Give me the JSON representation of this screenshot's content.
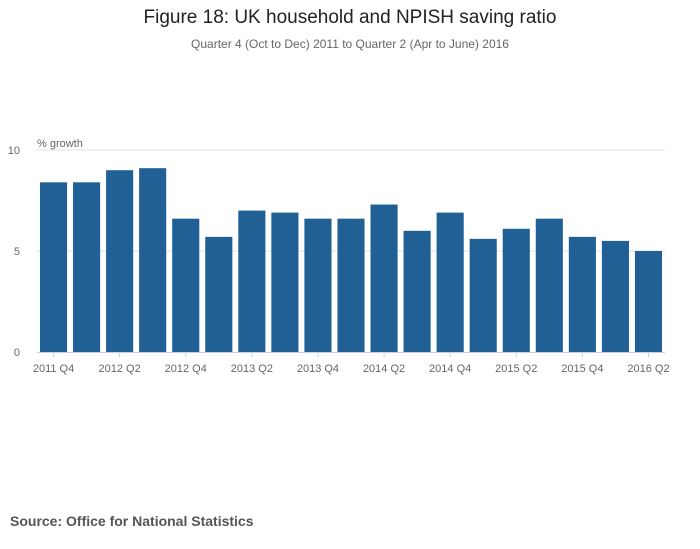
{
  "chart_data": {
    "type": "bar",
    "title": "Figure 18: UK household and NPISH saving ratio",
    "subtitle": "Quarter 4 (Oct to Dec) 2011 to Quarter 2 (Apr to June) 2016",
    "ylabel": "% growth",
    "xlabel": "",
    "ylim": [
      0,
      10
    ],
    "yticks": [
      0,
      5,
      10
    ],
    "grid": true,
    "color": "#206095",
    "categories": [
      "2011 Q4",
      "2012 Q1",
      "2012 Q2",
      "2012 Q3",
      "2012 Q4",
      "2013 Q1",
      "2013 Q2",
      "2013 Q3",
      "2013 Q4",
      "2014 Q1",
      "2014 Q2",
      "2014 Q3",
      "2014 Q4",
      "2015 Q1",
      "2015 Q2",
      "2015 Q3",
      "2015 Q4",
      "2016 Q1",
      "2016 Q2"
    ],
    "xtick_labels": [
      "2011 Q4",
      "2012 Q2",
      "2012 Q4",
      "2013 Q2",
      "2013 Q4",
      "2014 Q2",
      "2014 Q4",
      "2015 Q2",
      "2015 Q4",
      "2016 Q2"
    ],
    "values": [
      8.4,
      8.4,
      9.0,
      9.1,
      6.6,
      5.7,
      7.0,
      6.9,
      6.6,
      6.6,
      7.3,
      6.0,
      6.9,
      5.6,
      6.1,
      6.6,
      5.7,
      5.5,
      5.0
    ]
  },
  "source": "Source: Office for National Statistics"
}
